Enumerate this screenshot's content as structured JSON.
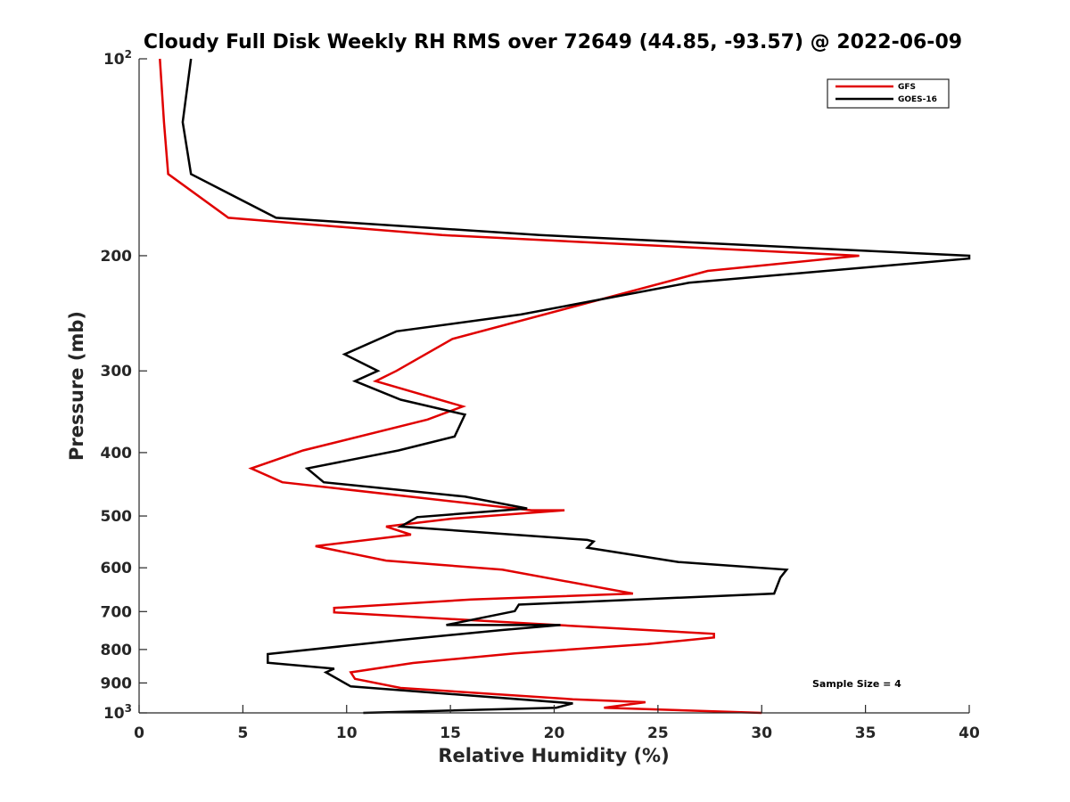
{
  "chart_data": {
    "type": "line",
    "title": "Cloudy Full Disk Weekly RH RMS over 72649 (44.85, -93.57) @ 2022-06-09",
    "xlabel": "Relative Humidity (%)",
    "ylabel": "Pressure (mb)",
    "xlim": [
      0,
      40
    ],
    "ylim": [
      100,
      1000
    ],
    "y_scale": "log",
    "y_reversed": true,
    "x_ticks": [
      "0",
      "5",
      "10",
      "15",
      "20",
      "25",
      "30",
      "35",
      "40"
    ],
    "y_ticks": [
      {
        "value": 100,
        "label": "10",
        "sup": "2"
      },
      {
        "value": 200,
        "label": "200",
        "sup": ""
      },
      {
        "value": 300,
        "label": "300",
        "sup": ""
      },
      {
        "value": 400,
        "label": "400",
        "sup": ""
      },
      {
        "value": 500,
        "label": "500",
        "sup": ""
      },
      {
        "value": 600,
        "label": "600",
        "sup": ""
      },
      {
        "value": 700,
        "label": "700",
        "sup": ""
      },
      {
        "value": 800,
        "label": "800",
        "sup": ""
      },
      {
        "value": 900,
        "label": "900",
        "sup": ""
      },
      {
        "value": 1000,
        "label": "10",
        "sup": "3"
      }
    ],
    "grid": false,
    "legend_position": "top-right",
    "annotation": "Sample Size = 4",
    "series": [
      {
        "name": "GFS",
        "color": "#e00000",
        "points": [
          [
            1.0,
            100
          ],
          [
            1.2,
            125
          ],
          [
            1.4,
            150
          ],
          [
            4.3,
            175
          ],
          [
            14.6,
            186
          ],
          [
            34.7,
            200
          ],
          [
            27.4,
            211
          ],
          [
            15.1,
            268
          ],
          [
            12.4,
            300
          ],
          [
            11.4,
            311
          ],
          [
            15.6,
            340
          ],
          [
            13.9,
            356
          ],
          [
            7.9,
            397
          ],
          [
            5.4,
            423
          ],
          [
            6.9,
            444
          ],
          [
            18.9,
            490
          ],
          [
            20.5,
            490
          ],
          [
            15.0,
            505
          ],
          [
            11.9,
            519
          ],
          [
            13.1,
            534
          ],
          [
            8.5,
            556
          ],
          [
            11.9,
            585
          ],
          [
            17.5,
            604
          ],
          [
            23.8,
            657
          ],
          [
            16.0,
            671
          ],
          [
            9.4,
            691
          ],
          [
            9.4,
            702
          ],
          [
            16.8,
            724
          ],
          [
            27.7,
            757
          ],
          [
            27.7,
            767
          ],
          [
            24.5,
            785
          ],
          [
            18.1,
            811
          ],
          [
            13.2,
            839
          ],
          [
            10.2,
            867
          ],
          [
            10.4,
            887
          ],
          [
            12.6,
            916
          ],
          [
            20.9,
            953
          ],
          [
            24.4,
            963
          ],
          [
            22.4,
            982
          ],
          [
            30.0,
            1000
          ]
        ]
      },
      {
        "name": "GOES-16",
        "color": "#000000",
        "points": [
          [
            2.5,
            100
          ],
          [
            2.1,
            125
          ],
          [
            2.5,
            150
          ],
          [
            6.6,
            175
          ],
          [
            19.3,
            186
          ],
          [
            40.0,
            200
          ],
          [
            40.0,
            202
          ],
          [
            26.5,
            220
          ],
          [
            18.4,
            246
          ],
          [
            12.4,
            261
          ],
          [
            9.9,
            283
          ],
          [
            11.5,
            300
          ],
          [
            10.4,
            311
          ],
          [
            12.6,
            332
          ],
          [
            15.7,
            350
          ],
          [
            15.2,
            378
          ],
          [
            12.5,
            397
          ],
          [
            8.1,
            423
          ],
          [
            8.9,
            444
          ],
          [
            15.7,
            467
          ],
          [
            18.7,
            487
          ],
          [
            13.4,
            502
          ],
          [
            12.6,
            519
          ],
          [
            21.6,
            544
          ],
          [
            21.9,
            547
          ],
          [
            21.6,
            559
          ],
          [
            26.0,
            588
          ],
          [
            31.2,
            604
          ],
          [
            30.9,
            621
          ],
          [
            30.6,
            657
          ],
          [
            18.3,
            683
          ],
          [
            18.1,
            699
          ],
          [
            14.8,
            734
          ],
          [
            20.3,
            734
          ],
          [
            17.5,
            747
          ],
          [
            12.7,
            773
          ],
          [
            6.2,
            813
          ],
          [
            6.2,
            838
          ],
          [
            9.4,
            856
          ],
          [
            9.0,
            867
          ],
          [
            10.2,
            911
          ],
          [
            20.9,
            967
          ],
          [
            20.1,
            982
          ],
          [
            10.8,
            1000
          ]
        ]
      }
    ]
  }
}
